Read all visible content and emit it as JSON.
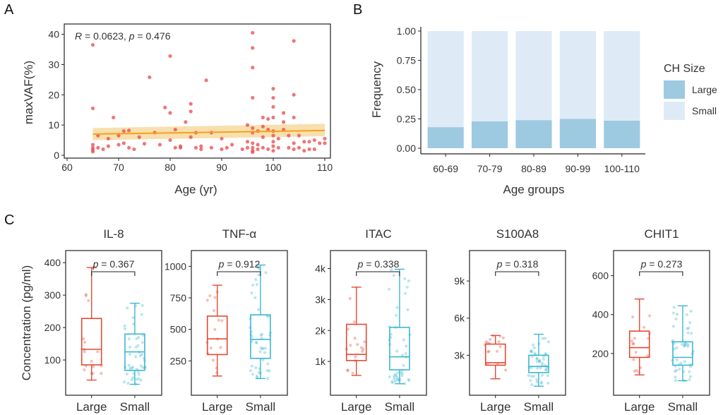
{
  "figure": {
    "panel_letters": [
      "A",
      "B",
      "C"
    ]
  },
  "chart_data": [
    {
      "panel": "A",
      "type": "scatter",
      "annotation": {
        "r_symbol": "R",
        "r_text": " = 0.0623, ",
        "p_symbol": "p",
        "p_text": " = 0.476"
      },
      "xlabel": "Age (yr)",
      "ylabel": "maxVAF(%)",
      "xlim": [
        60,
        110
      ],
      "ylim": [
        0,
        42
      ],
      "xticks": [
        60,
        70,
        80,
        90,
        100,
        110
      ],
      "yticks": [
        0,
        10,
        20,
        30,
        40
      ],
      "fit_line": {
        "x": [
          65,
          110
        ],
        "y": [
          7.0,
          8.2
        ],
        "ci_low": [
          5.0,
          6.3
        ],
        "ci_high": [
          9.0,
          10.4
        ]
      },
      "colors": {
        "points": "#e8484a",
        "fit": "#f5a21b",
        "ci": "#f7d9a0"
      },
      "points": [
        [
          65,
          36.5
        ],
        [
          65,
          15.5
        ],
        [
          65,
          3.5
        ],
        [
          65,
          2.5
        ],
        [
          65,
          1.8
        ],
        [
          65,
          1.2
        ],
        [
          66,
          2.5
        ],
        [
          66,
          6.5
        ],
        [
          67,
          2.0
        ],
        [
          68,
          3.0
        ],
        [
          68,
          5.5
        ],
        [
          69,
          12.5
        ],
        [
          70,
          3.5
        ],
        [
          70,
          6.5
        ],
        [
          71,
          8.0
        ],
        [
          71,
          4.0
        ],
        [
          72,
          8.2
        ],
        [
          72,
          2.5
        ],
        [
          73,
          2.0
        ],
        [
          74,
          6.0
        ],
        [
          75,
          3.8
        ],
        [
          76,
          25.8
        ],
        [
          77,
          7.5
        ],
        [
          78,
          3.5
        ],
        [
          79,
          15.8
        ],
        [
          80,
          32.8
        ],
        [
          80,
          14.0
        ],
        [
          80,
          5.0
        ],
        [
          81,
          8.5
        ],
        [
          81,
          2.5
        ],
        [
          82,
          2.5
        ],
        [
          82,
          3.0
        ],
        [
          83,
          11.0
        ],
        [
          84,
          17.0
        ],
        [
          84,
          14.5
        ],
        [
          84,
          6.0
        ],
        [
          85,
          7.5
        ],
        [
          85,
          2.5
        ],
        [
          86,
          3.0
        ],
        [
          86,
          2.0
        ],
        [
          87,
          24.8
        ],
        [
          88,
          2.5
        ],
        [
          88,
          7.5
        ],
        [
          90,
          5.5
        ],
        [
          90,
          2.0
        ],
        [
          91,
          2.5
        ],
        [
          92,
          3.5
        ],
        [
          94,
          2.0
        ],
        [
          95,
          10.0
        ],
        [
          95,
          4.5
        ],
        [
          95,
          2.5
        ],
        [
          96,
          40.5
        ],
        [
          96,
          35.5
        ],
        [
          96,
          29.0
        ],
        [
          96,
          19.0
        ],
        [
          96,
          9.0
        ],
        [
          96,
          7.5
        ],
        [
          96,
          4.0
        ],
        [
          96,
          2.5
        ],
        [
          96,
          1.5
        ],
        [
          96,
          1.0
        ],
        [
          97,
          8.0
        ],
        [
          97,
          3.5
        ],
        [
          97,
          2.0
        ],
        [
          98,
          12.5
        ],
        [
          98,
          9.5
        ],
        [
          98,
          6.0
        ],
        [
          98,
          2.5
        ],
        [
          99,
          12.0
        ],
        [
          99,
          8.5
        ],
        [
          99,
          2.0
        ],
        [
          100,
          22.0
        ],
        [
          100,
          19.0
        ],
        [
          100,
          16.0
        ],
        [
          100,
          12.5
        ],
        [
          100,
          8.0
        ],
        [
          100,
          6.5
        ],
        [
          100,
          4.5
        ],
        [
          100,
          3.0
        ],
        [
          100,
          1.5
        ],
        [
          101,
          5.5
        ],
        [
          101,
          2.5
        ],
        [
          102,
          14.0
        ],
        [
          102,
          11.0
        ],
        [
          102,
          8.5
        ],
        [
          103,
          2.5
        ],
        [
          103,
          6.5
        ],
        [
          104,
          37.8
        ],
        [
          104,
          20.0
        ],
        [
          104,
          12.5
        ],
        [
          104,
          4.0
        ],
        [
          104,
          2.0
        ],
        [
          105,
          6.5
        ],
        [
          105,
          2.5
        ],
        [
          106,
          4.5
        ],
        [
          106,
          1.5
        ],
        [
          107,
          2.0
        ],
        [
          107,
          4.5
        ],
        [
          108,
          2.0
        ],
        [
          108,
          5.0
        ],
        [
          109,
          4.0
        ],
        [
          110,
          5.5
        ],
        [
          110,
          4.0
        ]
      ]
    },
    {
      "panel": "B",
      "type": "bar",
      "stacked": true,
      "categories": [
        "60-69",
        "70-79",
        "80-89",
        "90-99",
        "100-110"
      ],
      "series": [
        {
          "name": "Large",
          "values": [
            0.18,
            0.23,
            0.24,
            0.25,
            0.235
          ]
        },
        {
          "name": "Small",
          "values": [
            0.82,
            0.77,
            0.76,
            0.75,
            0.765
          ]
        }
      ],
      "xlabel": "Age groups",
      "ylabel": "Frequency",
      "ylim": [
        0,
        1
      ],
      "yticks": [
        "0.00",
        "0.25",
        "0.50",
        "0.75",
        "1.00"
      ],
      "legend": {
        "title": "CH Size",
        "placement": "right"
      },
      "colors": {
        "Large": "#9ecae1",
        "Small": "#deebf7"
      }
    },
    {
      "panel": "C",
      "type": "box",
      "ylabel": "Concentration (pg/ml)",
      "groups": [
        "Large",
        "Small"
      ],
      "colors": {
        "Large": "#e34a33",
        "Small": "#3bb8d0"
      },
      "plots": [
        {
          "title": "IL-8",
          "ylim": [
            0,
            420
          ],
          "yticks": [
            100,
            200,
            300,
            400
          ],
          "ytick_labels": [
            "100",
            "200",
            "300",
            "400"
          ],
          "p_label": "p",
          "p_value": " = 0.367",
          "boxes": [
            {
              "min": 38,
              "q1": 85,
              "median": 133,
              "q3": 228,
              "max": 385
            },
            {
              "min": 25,
              "q1": 68,
              "median": 125,
              "q3": 180,
              "max": 275
            }
          ]
        },
        {
          "title": "TNF-α",
          "ylim": [
            0,
            1080
          ],
          "yticks": [
            250,
            500,
            750,
            1000
          ],
          "ytick_labels": [
            "250",
            "500",
            "750",
            "1000"
          ],
          "p_label": "p",
          "p_value": " = 0.912",
          "boxes": [
            {
              "min": 130,
              "q1": 300,
              "median": 425,
              "q3": 605,
              "max": 850
            },
            {
              "min": 110,
              "q1": 270,
              "median": 420,
              "q3": 615,
              "max": 1010
            }
          ]
        },
        {
          "title": "ITAC",
          "ylim": [
            0,
            4400
          ],
          "yticks": [
            1000,
            2000,
            3000,
            4000
          ],
          "ytick_labels": [
            "1k",
            "2k",
            "3k",
            "4k"
          ],
          "p_label": "p",
          "p_value": " = 0.338",
          "boxes": [
            {
              "min": 550,
              "q1": 1030,
              "median": 1230,
              "q3": 2200,
              "max": 3400
            },
            {
              "min": 280,
              "q1": 730,
              "median": 1150,
              "q3": 2100,
              "max": 3980
            }
          ]
        },
        {
          "title": "S100A8",
          "ylim": [
            0,
            11000
          ],
          "yticks": [
            3000,
            6000,
            9000
          ],
          "ytick_labels": [
            "3k",
            "6k",
            "9k"
          ],
          "p_label": "p",
          "p_value": " = 0.318",
          "boxes": [
            {
              "min": 1100,
              "q1": 2200,
              "median": 2400,
              "q3": 3900,
              "max": 4600
            },
            {
              "min": 500,
              "q1": 1600,
              "median": 2100,
              "q3": 3000,
              "max": 4700
            }
          ]
        },
        {
          "title": "CHIT1",
          "ylim": [
            0,
            700
          ],
          "yticks": [
            200,
            400,
            600
          ],
          "ytick_labels": [
            "200",
            "400",
            "600"
          ],
          "p_label": "p",
          "p_value": " = 0.273",
          "boxes": [
            {
              "min": 90,
              "q1": 180,
              "median": 230,
              "q3": 315,
              "max": 480
            },
            {
              "min": 60,
              "q1": 140,
              "median": 180,
              "q3": 260,
              "max": 445
            }
          ]
        }
      ]
    }
  ]
}
